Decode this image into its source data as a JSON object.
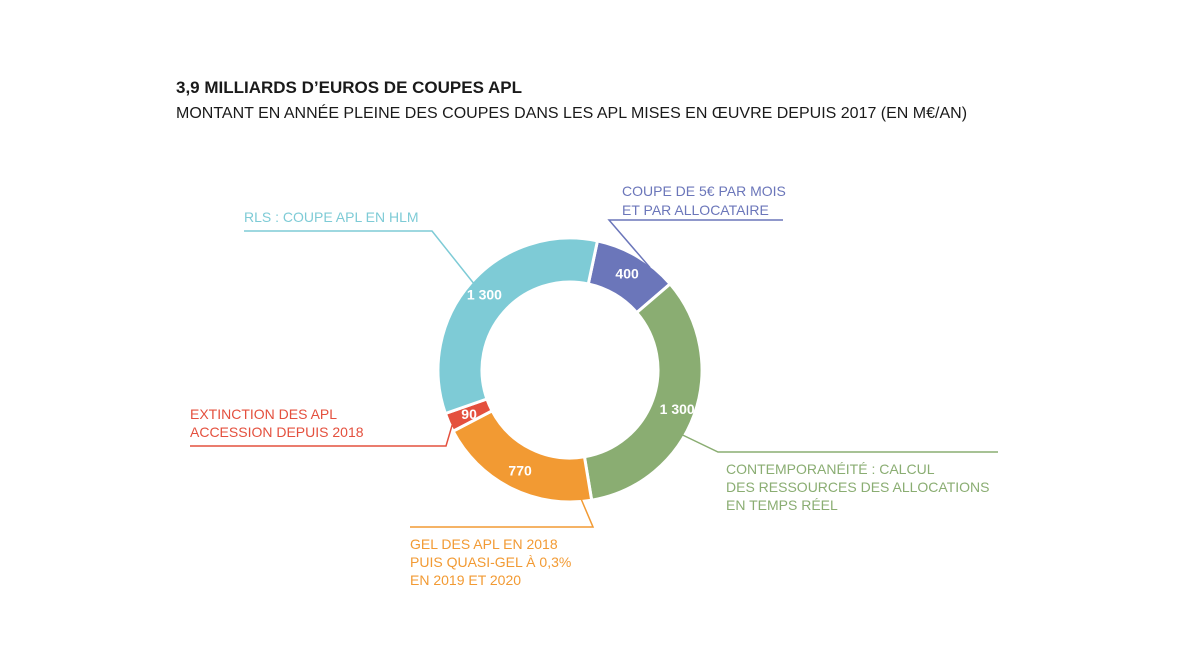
{
  "title": "3,9 MILLIARDS D’EUROS DE COUPES APL",
  "subtitle": "MONTANT EN ANNÉE PLEINE DES COUPES DANS LES APL MISES EN ŒUVRE DEPUIS 2017 (EN M€/AN)",
  "chart_data": {
    "type": "pie",
    "donut": true,
    "unit": "M€/an",
    "slices": [
      {
        "key": "reduction_5eur",
        "value": 400,
        "value_label": "400",
        "color": "#6b76ba",
        "callout_lines": [
          "COUPE DE 5€ PAR MOIS",
          "ET PAR ALLOCATAIRE"
        ]
      },
      {
        "key": "contemporaneite",
        "value": 1300,
        "value_label": "1 300",
        "color": "#8aad72",
        "callout_lines": [
          "CONTEMPORANÉITÉ : CALCUL",
          "DES RESSOURCES DES ALLOCATIONS",
          "EN TEMPS RÉEL"
        ]
      },
      {
        "key": "gel",
        "value": 770,
        "value_label": "770",
        "color": "#f29a33",
        "callout_lines": [
          "GEL DES APL EN 2018",
          "PUIS QUASI-GEL À 0,3%",
          "EN 2019 ET 2020"
        ]
      },
      {
        "key": "extinction_accession",
        "value": 90,
        "value_label": "90",
        "color": "#e4503e",
        "callout_lines": [
          "EXTINCTION DES APL",
          "ACCESSION DEPUIS 2018"
        ]
      },
      {
        "key": "rls",
        "value": 1300,
        "value_label": "1 300",
        "color": "#7ecbd6",
        "callout_lines": [
          "RLS : COUPE APL EN HLM"
        ]
      }
    ]
  }
}
